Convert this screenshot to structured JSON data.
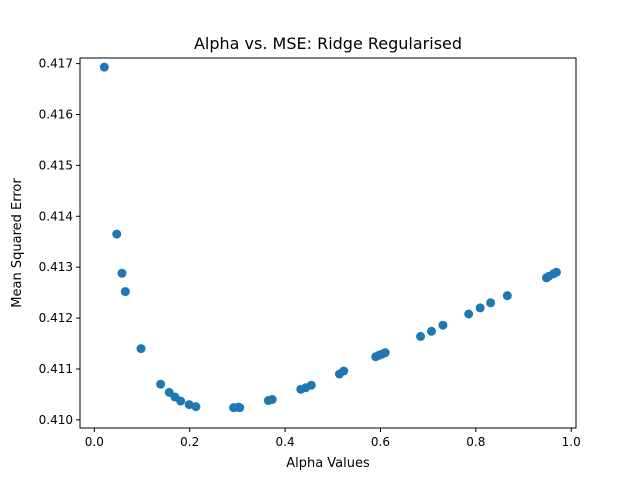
{
  "chart_data": {
    "type": "scatter",
    "title": "Alpha vs. MSE: Ridge Regularised",
    "xlabel": "Alpha Values",
    "ylabel": "Mean Squared Error",
    "xlim": [
      -0.03,
      1.01
    ],
    "ylim": [
      0.40984,
      0.41711
    ],
    "xticks": [
      0.0,
      0.2,
      0.4,
      0.6,
      0.8,
      1.0
    ],
    "xtick_labels": [
      "0.0",
      "0.2",
      "0.4",
      "0.6",
      "0.8",
      "1.0"
    ],
    "yticks": [
      0.41,
      0.411,
      0.412,
      0.413,
      0.414,
      0.415,
      0.416,
      0.417
    ],
    "ytick_labels": [
      "0.410",
      "0.411",
      "0.412",
      "0.413",
      "0.414",
      "0.415",
      "0.416",
      "0.417"
    ],
    "grid": false,
    "marker_color": "#1f77b4",
    "points": [
      {
        "x": 0.021,
        "y": 0.41693
      },
      {
        "x": 0.047,
        "y": 0.41365
      },
      {
        "x": 0.058,
        "y": 0.41288
      },
      {
        "x": 0.065,
        "y": 0.41252
      },
      {
        "x": 0.098,
        "y": 0.4114
      },
      {
        "x": 0.139,
        "y": 0.4107
      },
      {
        "x": 0.157,
        "y": 0.41054
      },
      {
        "x": 0.169,
        "y": 0.41045
      },
      {
        "x": 0.181,
        "y": 0.41037
      },
      {
        "x": 0.199,
        "y": 0.4103
      },
      {
        "x": 0.213,
        "y": 0.41026
      },
      {
        "x": 0.292,
        "y": 0.41024
      },
      {
        "x": 0.302,
        "y": 0.41025
      },
      {
        "x": 0.305,
        "y": 0.41024
      },
      {
        "x": 0.365,
        "y": 0.41038
      },
      {
        "x": 0.373,
        "y": 0.4104
      },
      {
        "x": 0.433,
        "y": 0.4106
      },
      {
        "x": 0.443,
        "y": 0.41063
      },
      {
        "x": 0.455,
        "y": 0.41068
      },
      {
        "x": 0.514,
        "y": 0.4109
      },
      {
        "x": 0.523,
        "y": 0.41096
      },
      {
        "x": 0.59,
        "y": 0.41124
      },
      {
        "x": 0.597,
        "y": 0.41127
      },
      {
        "x": 0.603,
        "y": 0.41129
      },
      {
        "x": 0.61,
        "y": 0.41132
      },
      {
        "x": 0.684,
        "y": 0.41164
      },
      {
        "x": 0.707,
        "y": 0.41174
      },
      {
        "x": 0.731,
        "y": 0.41186
      },
      {
        "x": 0.785,
        "y": 0.41208
      },
      {
        "x": 0.809,
        "y": 0.4122
      },
      {
        "x": 0.831,
        "y": 0.4123
      },
      {
        "x": 0.866,
        "y": 0.41244
      },
      {
        "x": 0.948,
        "y": 0.41279
      },
      {
        "x": 0.953,
        "y": 0.41282
      },
      {
        "x": 0.963,
        "y": 0.41287
      },
      {
        "x": 0.969,
        "y": 0.4129
      }
    ]
  }
}
